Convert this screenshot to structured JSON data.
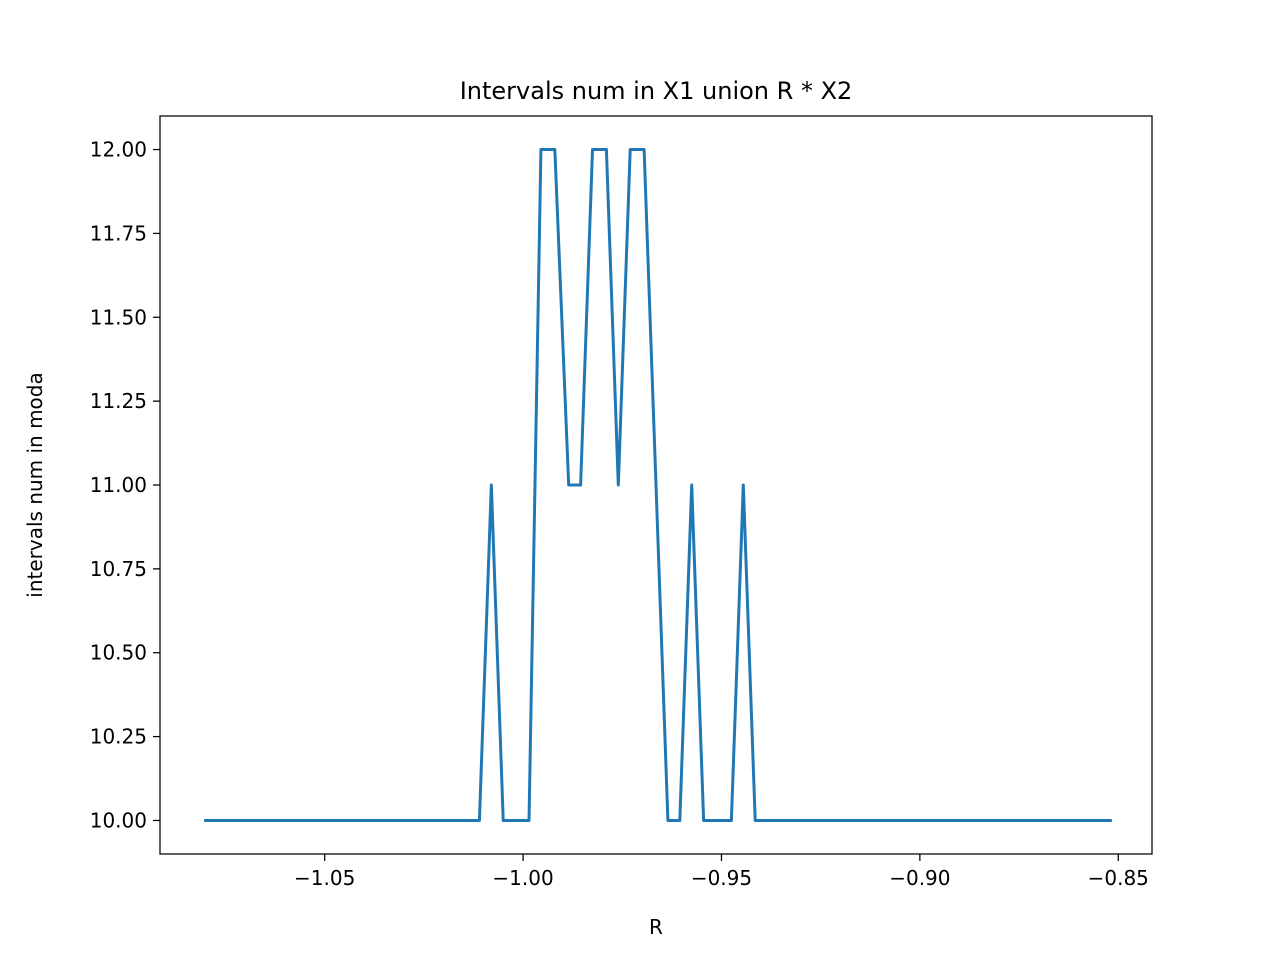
{
  "chart_data": {
    "type": "line",
    "title": "Intervals num in X1 union R * X2",
    "xlabel": "R",
    "ylabel": "intervals num in moda",
    "xlim": [
      -1.0915,
      -0.8415
    ],
    "ylim": [
      9.9,
      12.1
    ],
    "xticks": [
      -1.05,
      -1.0,
      -0.95,
      -0.9,
      -0.85
    ],
    "xtick_labels": [
      "−1.05",
      "−1.00",
      "−0.95",
      "−0.90",
      "−0.85"
    ],
    "yticks": [
      10.0,
      10.25,
      10.5,
      10.75,
      11.0,
      11.25,
      11.5,
      11.75,
      12.0
    ],
    "ytick_labels": [
      "10.00",
      "10.25",
      "10.50",
      "10.75",
      "11.00",
      "11.25",
      "11.50",
      "11.75",
      "12.00"
    ],
    "grid": false,
    "legend": "none",
    "series": [
      {
        "color": "#1f77b4",
        "x": [
          -1.08,
          -1.011,
          -1.008,
          -1.005,
          -0.9985,
          -0.9955,
          -0.992,
          -0.9885,
          -0.9855,
          -0.9825,
          -0.979,
          -0.976,
          -0.973,
          -0.9695,
          -0.9635,
          -0.9605,
          -0.9575,
          -0.9545,
          -0.9475,
          -0.9445,
          -0.9415,
          -0.852
        ],
        "y": [
          10,
          10,
          11,
          10,
          10,
          12,
          12,
          11,
          11,
          12,
          12,
          11,
          12,
          12,
          10,
          10,
          11,
          10,
          10,
          11,
          10,
          10
        ]
      }
    ]
  }
}
